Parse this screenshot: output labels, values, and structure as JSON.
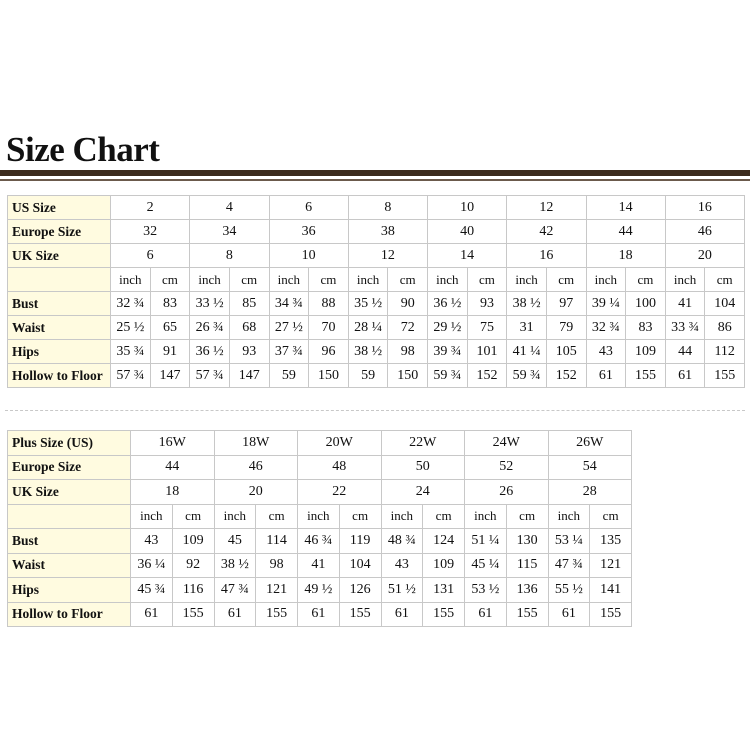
{
  "title": "Size Chart",
  "table1": {
    "size_rows": [
      {
        "label": "US Size",
        "sizes": [
          "2",
          "4",
          "6",
          "8",
          "10",
          "12",
          "14",
          "16"
        ]
      },
      {
        "label": "Europe Size",
        "sizes": [
          "32",
          "34",
          "36",
          "38",
          "40",
          "42",
          "44",
          "46"
        ]
      },
      {
        "label": "UK Size",
        "sizes": [
          "6",
          "8",
          "10",
          "12",
          "14",
          "16",
          "18",
          "20"
        ]
      }
    ],
    "units": [
      "inch",
      "cm",
      "inch",
      "cm",
      "inch",
      "cm",
      "inch",
      "cm",
      "inch",
      "cm",
      "inch",
      "cm",
      "inch",
      "cm",
      "inch",
      "cm"
    ],
    "measure_rows": [
      {
        "label": "Bust",
        "values": [
          "32 ¾",
          "83",
          "33 ½",
          "85",
          "34 ¾",
          "88",
          "35 ½",
          "90",
          "36 ½",
          "93",
          "38 ½",
          "97",
          "39 ¼",
          "100",
          "41",
          "104"
        ]
      },
      {
        "label": "Waist",
        "values": [
          "25 ½",
          "65",
          "26 ¾",
          "68",
          "27 ½",
          "70",
          "28 ¼",
          "72",
          "29 ½",
          "75",
          "31",
          "79",
          "32 ¾",
          "83",
          "33 ¾",
          "86"
        ]
      },
      {
        "label": "Hips",
        "values": [
          "35 ¾",
          "91",
          "36 ½",
          "93",
          "37 ¾",
          "96",
          "38 ½",
          "98",
          "39 ¾",
          "101",
          "41 ¼",
          "105",
          "43",
          "109",
          "44",
          "112"
        ]
      },
      {
        "label": "Hollow to Floor",
        "values": [
          "57 ¾",
          "147",
          "57 ¾",
          "147",
          "59",
          "150",
          "59",
          "150",
          "59 ¾",
          "152",
          "59 ¾",
          "152",
          "61",
          "155",
          "61",
          "155"
        ]
      }
    ]
  },
  "table2": {
    "size_rows": [
      {
        "label": "Plus Size (US)",
        "sizes": [
          "16W",
          "18W",
          "20W",
          "22W",
          "24W",
          "26W"
        ]
      },
      {
        "label": "Europe Size",
        "sizes": [
          "44",
          "46",
          "48",
          "50",
          "52",
          "54"
        ]
      },
      {
        "label": "UK Size",
        "sizes": [
          "18",
          "20",
          "22",
          "24",
          "26",
          "28"
        ]
      }
    ],
    "units": [
      "inch",
      "cm",
      "inch",
      "cm",
      "inch",
      "cm",
      "inch",
      "cm",
      "inch",
      "cm",
      "inch",
      "cm"
    ],
    "measure_rows": [
      {
        "label": "Bust",
        "values": [
          "43",
          "109",
          "45",
          "114",
          "46 ¾",
          "119",
          "48 ¾",
          "124",
          "51 ¼",
          "130",
          "53 ¼",
          "135"
        ]
      },
      {
        "label": "Waist",
        "values": [
          "36 ¼",
          "92",
          "38 ½",
          "98",
          "41",
          "104",
          "43",
          "109",
          "45 ¼",
          "115",
          "47 ¾",
          "121"
        ]
      },
      {
        "label": "Hips",
        "values": [
          "45 ¾",
          "116",
          "47 ¾",
          "121",
          "49 ½",
          "126",
          "51 ½",
          "131",
          "53 ½",
          "136",
          "55 ½",
          "141"
        ]
      },
      {
        "label": "Hollow to Floor",
        "values": [
          "61",
          "155",
          "61",
          "155",
          "61",
          "155",
          "61",
          "155",
          "61",
          "155",
          "61",
          "155"
        ]
      }
    ]
  }
}
